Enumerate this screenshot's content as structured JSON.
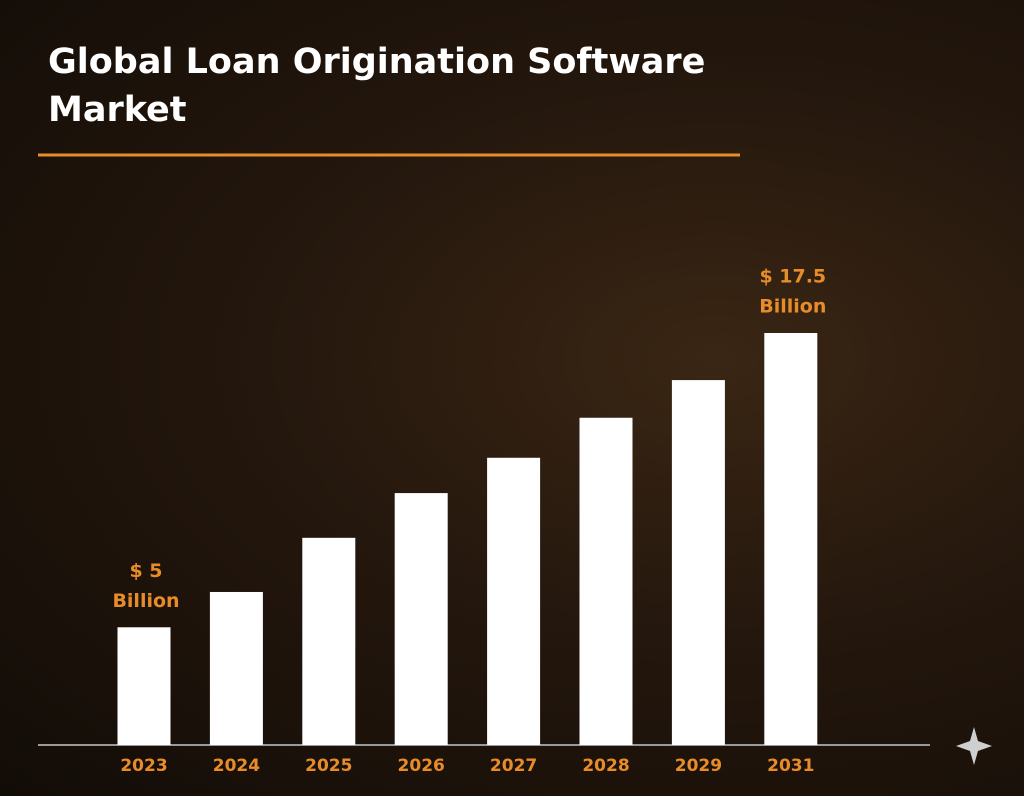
{
  "chart_data": {
    "type": "bar",
    "title": "Global Loan Origination Software Market",
    "categories": [
      "2023",
      "2024",
      "2025",
      "2026",
      "2027",
      "2028",
      "2029",
      "2031"
    ],
    "values": [
      5,
      6.5,
      8.8,
      10.7,
      12.2,
      13.9,
      15.5,
      17.5
    ],
    "value_labels": [
      [
        "$ 5",
        "Billion"
      ],
      null,
      null,
      null,
      null,
      null,
      null,
      [
        "$ 17.5",
        "Billion"
      ]
    ],
    "color": "#ffffff"
  }
}
